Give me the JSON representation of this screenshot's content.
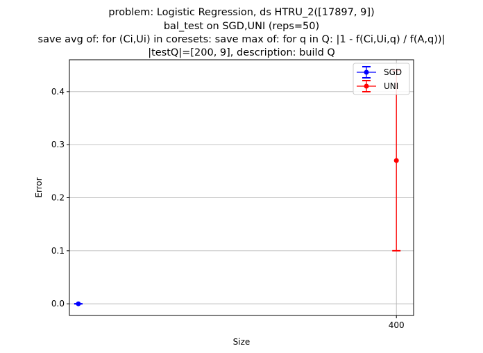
{
  "chart_data": {
    "type": "line",
    "title_lines": [
      "problem: Logistic Regression, ds HTRU_2([17897, 9])",
      "bal_test on SGD,UNI (reps=50)",
      "save avg of: for (Ci,Ui) in coresets: save max of: for q in Q: |1 - f(Ci,Ui,q) / f(A,q))|",
      "|testQ|=[200, 9], description: build Q"
    ],
    "xlabel": "Size",
    "ylabel": "Error",
    "xticks": [
      400
    ],
    "yticks": [
      0.0,
      0.1,
      0.2,
      0.3,
      0.4
    ],
    "ytick_labels": [
      "0.0",
      "0.1",
      "0.2",
      "0.3",
      "0.4"
    ],
    "xlim": [
      -1,
      400
    ],
    "ylim": [
      -0.022,
      0.46
    ],
    "grid": true,
    "legend_position": "top-right",
    "series": [
      {
        "name": "SGD",
        "color": "#0000ff",
        "points": [
          {
            "x": 10,
            "y": 0.0,
            "err_low": 0.0,
            "err_high": 0.0
          }
        ]
      },
      {
        "name": "UNI",
        "color": "#ff0000",
        "points": [
          {
            "x": 400,
            "y": 0.27,
            "err_low": 0.1,
            "err_high": 0.44
          }
        ]
      }
    ]
  }
}
